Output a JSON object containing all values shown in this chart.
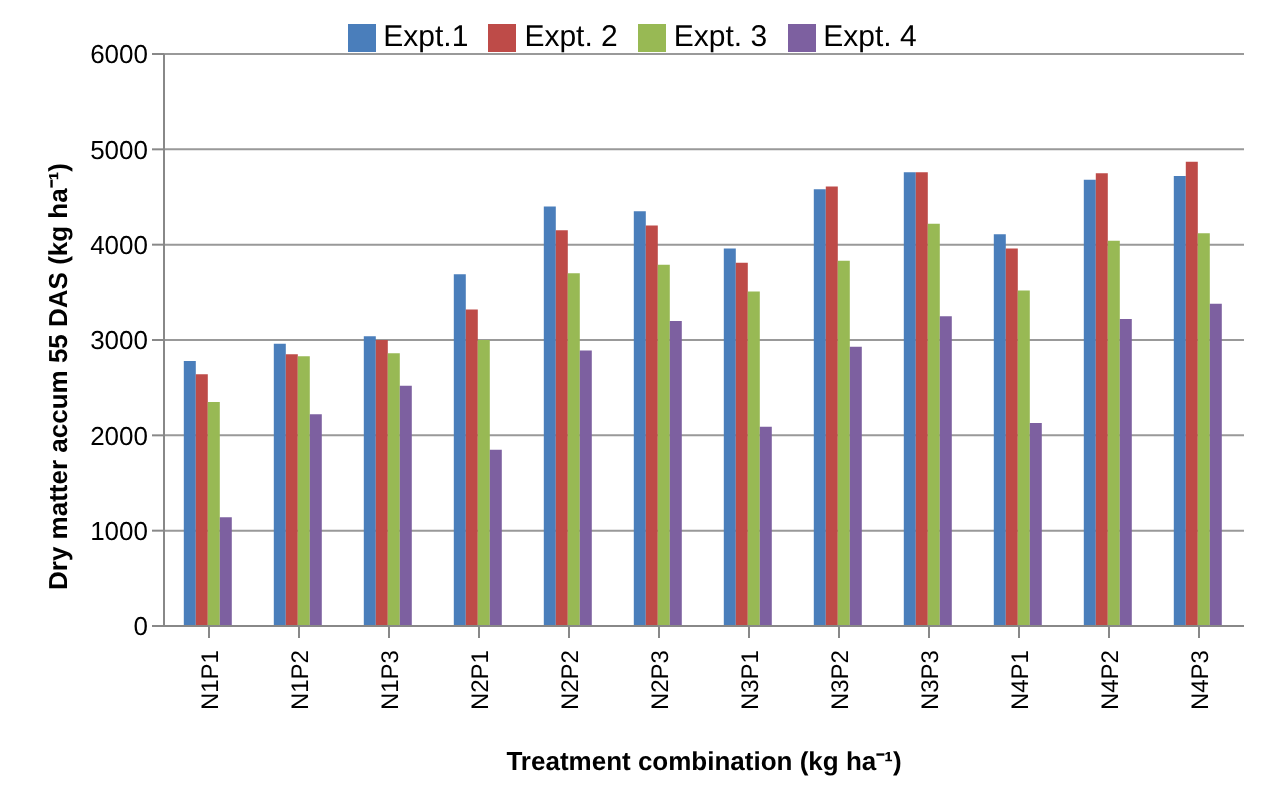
{
  "chart_data": {
    "type": "bar",
    "xlabel": "Treatment combination (kg ha⁻¹)",
    "ylabel": "Dry matter accum 55 DAS (kg ha⁻¹)",
    "categories": [
      "N1P1",
      "N1P2",
      "N1P3",
      "N2P1",
      "N2P2",
      "N2P3",
      "N3P1",
      "N3P2",
      "N3P3",
      "N4P1",
      "N4P2",
      "N4P3"
    ],
    "series": [
      {
        "name": "Expt.1",
        "color": "#4a7ebb",
        "values": [
          2780,
          2960,
          3040,
          3690,
          4400,
          4350,
          3960,
          4580,
          4760,
          4110,
          4680,
          4720
        ]
      },
      {
        "name": "Expt. 2",
        "color": "#be4b48",
        "values": [
          2640,
          2850,
          3000,
          3320,
          4150,
          4200,
          3810,
          4610,
          4760,
          3960,
          4750,
          4870
        ]
      },
      {
        "name": "Expt. 3",
        "color": "#98b954",
        "values": [
          2350,
          2830,
          2860,
          3000,
          3700,
          3790,
          3510,
          3830,
          4220,
          3520,
          4040,
          4120
        ]
      },
      {
        "name": "Expt. 4",
        "color": "#7d60a0",
        "values": [
          1140,
          2220,
          2520,
          1850,
          2890,
          3200,
          2090,
          2930,
          3250,
          2130,
          3220,
          3380
        ]
      }
    ],
    "ylim": [
      0,
      6000
    ],
    "yticks": [
      0,
      1000,
      2000,
      3000,
      4000,
      5000,
      6000
    ],
    "grid": "y",
    "legend": "top"
  }
}
